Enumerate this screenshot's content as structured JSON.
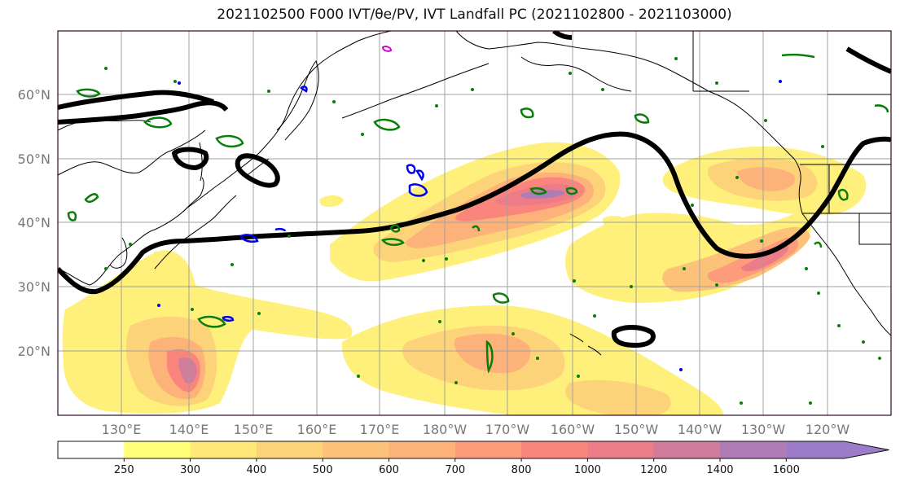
{
  "title": "2021102500 F000 IVT/θe/PV, IVT Landfall PC (2021102800 - 2021103000)",
  "lat_labels": [
    "60°N",
    "50°N",
    "40°N",
    "30°N",
    "20°N"
  ],
  "lon_labels": [
    "130°E",
    "140°E",
    "150°E",
    "160°E",
    "170°E",
    "180°W",
    "170°W",
    "160°W",
    "150°W",
    "140°W",
    "130°W",
    "120°W"
  ],
  "colorbar": {
    "levels": [
      "250",
      "300",
      "400",
      "500",
      "600",
      "700",
      "800",
      "1000",
      "1200",
      "1400",
      "1600"
    ],
    "colors": [
      "#ffffff",
      "#fefe77",
      "#fde878",
      "#fdd37a",
      "#fdc27a",
      "#fdb27a",
      "#fc9c7b",
      "#f9857d",
      "#ec7d88",
      "#d07c9a",
      "#b07cb6",
      "#9c7cc8"
    ]
  },
  "colors": {
    "landfall_contour": "#000000",
    "theta_e_contour": "#0a7d0a",
    "pv_contour": "#0000ee",
    "coastline": "#000000",
    "gridline": "#a0a0a0"
  }
}
